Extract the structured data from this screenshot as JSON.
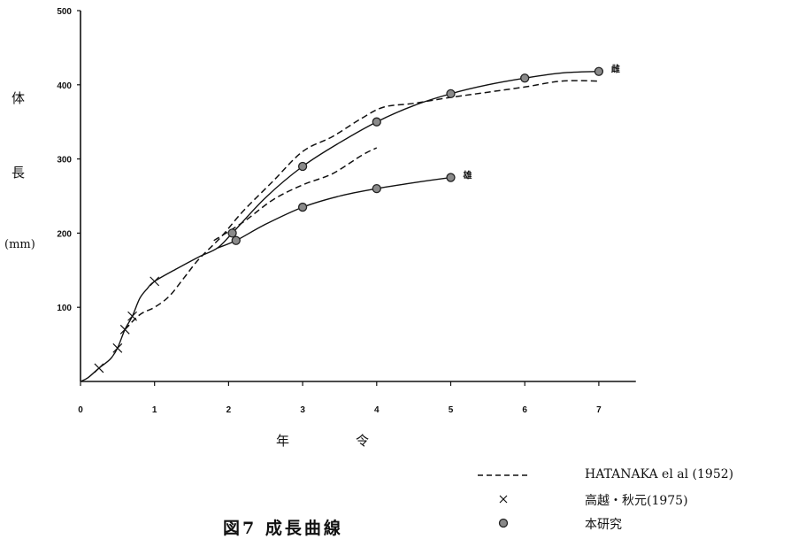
{
  "chart_data": {
    "type": "line",
    "title": "図7 成長曲線",
    "ylabel": [
      "体",
      "長",
      "(mm)"
    ],
    "xlabel": "年　令",
    "xlim": [
      0,
      7.5
    ],
    "ylim": [
      0,
      500
    ],
    "xticks": [
      "0",
      "1",
      "2",
      "3",
      "4",
      "5",
      "6",
      "7"
    ],
    "yticks": [
      "100",
      "200",
      "300",
      "400",
      "500"
    ],
    "series": [
      {
        "name": "HATANAKA el al (1952)",
        "style": "dashed",
        "segments": [
          [
            [
              0.6,
              70
            ],
            [
              0.8,
              90
            ],
            [
              1.0,
              100
            ],
            [
              1.2,
              115
            ],
            [
              1.4,
              140
            ],
            [
              1.6,
              165
            ],
            [
              1.9,
              195
            ],
            [
              2.2,
              230
            ],
            [
              2.6,
              270
            ],
            [
              3.0,
              310
            ],
            [
              3.4,
              330
            ],
            [
              3.8,
              355
            ],
            [
              4.1,
              370
            ],
            [
              4.5,
              375
            ],
            [
              5.0,
              383
            ],
            [
              5.5,
              390
            ],
            [
              6.0,
              397
            ],
            [
              6.5,
              405
            ],
            [
              7.0,
              405
            ]
          ],
          [
            [
              1.8,
              190
            ],
            [
              2.2,
              215
            ],
            [
              2.6,
              245
            ],
            [
              3.0,
              265
            ],
            [
              3.4,
              280
            ],
            [
              3.8,
              305
            ],
            [
              4.0,
              315
            ]
          ]
        ]
      },
      {
        "name": "高越・秋元(1975)",
        "style": "cross",
        "points": [
          [
            0.25,
            18
          ],
          [
            0.5,
            45
          ],
          [
            0.6,
            70
          ],
          [
            0.7,
            88
          ],
          [
            1.0,
            135
          ]
        ]
      },
      {
        "name": "本研究",
        "style": "dot",
        "groups": [
          {
            "label": "雌",
            "points": [
              [
                2.05,
                200
              ],
              [
                3.0,
                290
              ],
              [
                4.0,
                350
              ],
              [
                5.0,
                388
              ],
              [
                6.0,
                409
              ],
              [
                7.0,
                418
              ]
            ]
          },
          {
            "label": "雄",
            "points": [
              [
                2.1,
                190
              ],
              [
                3.0,
                235
              ],
              [
                4.0,
                260
              ],
              [
                5.0,
                275
              ]
            ]
          }
        ],
        "fit_curves": [
          [
            [
              0,
              0
            ],
            [
              0.1,
              5
            ],
            [
              0.25,
              18
            ],
            [
              0.4,
              30
            ],
            [
              0.5,
              45
            ],
            [
              0.6,
              70
            ],
            [
              0.7,
              88
            ],
            [
              0.8,
              112
            ],
            [
              0.9,
              125
            ],
            [
              1.0,
              135
            ],
            [
              1.3,
              152
            ],
            [
              1.6,
              168
            ],
            [
              1.85,
              180
            ],
            [
              2.05,
              200
            ],
            [
              2.5,
              248
            ],
            [
              3.0,
              290
            ],
            [
              3.5,
              322
            ],
            [
              4.0,
              350
            ],
            [
              4.5,
              372
            ],
            [
              5.0,
              388
            ],
            [
              5.5,
              400
            ],
            [
              6.0,
              409
            ],
            [
              6.5,
              416
            ],
            [
              7.0,
              418
            ]
          ],
          [
            [
              1.85,
              180
            ],
            [
              2.1,
              190
            ],
            [
              2.5,
              212
            ],
            [
              3.0,
              235
            ],
            [
              3.5,
              250
            ],
            [
              4.0,
              260
            ],
            [
              4.5,
              268
            ],
            [
              5.0,
              275
            ]
          ]
        ]
      }
    ],
    "grid": false,
    "legend_position": "bottom-right"
  },
  "legend": {
    "items": [
      {
        "text": "HATANAKA el al (1952)"
      },
      {
        "text": "高越・秋元(1975)"
      },
      {
        "text": "本研究"
      }
    ]
  }
}
